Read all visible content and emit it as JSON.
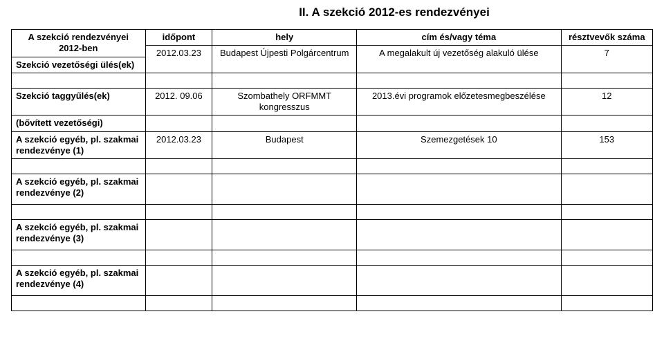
{
  "title": "II. A szekció 2012-es rendezvényei",
  "headers": {
    "rowlabel": "A szekció rendezvényei 2012-ben",
    "col_date": "időpont",
    "col_place": "hely",
    "col_topic": "cím és/vagy téma",
    "col_count": "résztvevők száma"
  },
  "rows": {
    "leadership": {
      "label": "Szekció vezetőségi ülés(ek)",
      "date": "2012.03.23",
      "place": "Budapest Újpesti Polgárcentrum",
      "topic": "A megalakult új vezetőség alakuló ülése",
      "count": "7"
    },
    "spacer1": {
      "label": ""
    },
    "member_meeting": {
      "label": "Szekció taggyűlés(ek)",
      "date": "2012. 09.06",
      "place": "Szombathely ORFMMT kongresszus",
      "topic": "2013.évi programok előzetesmegbeszélése",
      "count": "12"
    },
    "extended_board": {
      "label": "(bővített vezetőségi)",
      "date": "",
      "place": "",
      "topic": "",
      "count": ""
    },
    "other1": {
      "label": "A szekció egyéb, pl. szakmai rendezvénye (1)",
      "date": "2012.03.23",
      "place": "Budapest",
      "topic": "Szemezgetések 10",
      "count": "153"
    },
    "spacer2": {
      "label": ""
    },
    "other2": {
      "label": "A szekció egyéb, pl. szakmai rendezvénye (2)",
      "date": "",
      "place": "",
      "topic": "",
      "count": ""
    },
    "spacer3": {
      "label": ""
    },
    "other3": {
      "label": "A szekció egyéb, pl. szakmai rendezvénye (3)",
      "date": "",
      "place": "",
      "topic": "",
      "count": ""
    },
    "spacer4": {
      "label": ""
    },
    "other4": {
      "label": "A szekció egyéb, pl. szakmai rendezvénye (4)",
      "date": "",
      "place": "",
      "topic": "",
      "count": ""
    },
    "spacer5": {
      "label": ""
    }
  }
}
